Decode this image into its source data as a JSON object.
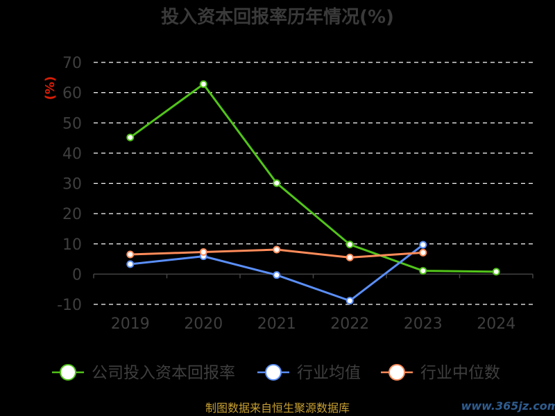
{
  "chart_data": {
    "type": "line",
    "title": "投入资本回报率历年情况(%)",
    "ylabel": "(%)",
    "categories": [
      "2019",
      "2020",
      "2021",
      "2022",
      "2023",
      "2024"
    ],
    "ylim": [
      -10,
      70
    ],
    "yticks": [
      70,
      60,
      50,
      40,
      30,
      20,
      10,
      0,
      -10
    ],
    "grid": true,
    "legend_position": "bottom",
    "series": [
      {
        "name": "公司投入资本回报率",
        "color": "#52c41a",
        "values": [
          45.2,
          62.8,
          30.1,
          9.8,
          1.1,
          0.8
        ]
      },
      {
        "name": "行业均值",
        "color": "#5b8ff9",
        "values": [
          3.3,
          5.9,
          -0.3,
          -8.8,
          9.7,
          null
        ]
      },
      {
        "name": "行业中位数",
        "color": "#ff8c5a",
        "values": [
          6.5,
          7.3,
          8.1,
          5.5,
          7.1,
          null
        ]
      }
    ]
  },
  "source_text": "制图数据来自恒生聚源数据库",
  "watermark": "www.365jz.com"
}
